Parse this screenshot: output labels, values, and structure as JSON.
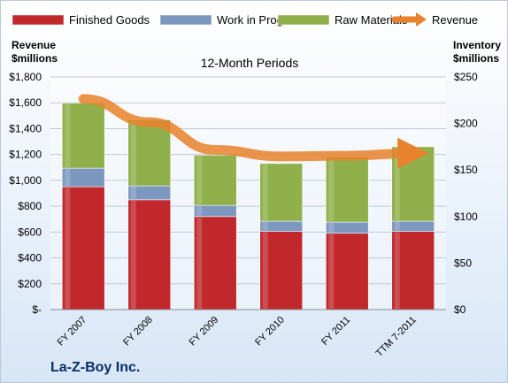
{
  "chart_data": {
    "type": "bar",
    "subtitle": "12-Month Periods",
    "company": "La-Z-Boy Inc.",
    "categories": [
      "FY 2007",
      "FY 2008",
      "FY 2009",
      "FY 2010",
      "FY 2011",
      "TTM 7-2011"
    ],
    "left_axis": {
      "label_line1": "Revenue",
      "label_line2": "$millions",
      "range": [
        0,
        1800
      ],
      "ticks": [
        0,
        200,
        400,
        600,
        800,
        1000,
        1200,
        1400,
        1600,
        1800
      ],
      "tick_labels": [
        "$-",
        "$200",
        "$400",
        "$600",
        "$800",
        "$1,000",
        "$1,200",
        "$1,400",
        "$1,600",
        "$1,800"
      ]
    },
    "right_axis": {
      "label_line1": "Inventory",
      "label_line2": "$millions",
      "range": [
        0,
        250
      ],
      "ticks": [
        0,
        50,
        100,
        150,
        200,
        250
      ],
      "tick_labels": [
        "$0",
        "$50",
        "$100",
        "$150",
        "$200",
        "$250"
      ]
    },
    "stack_series": [
      {
        "name": "Finished Goods",
        "color": "#c0282c",
        "values": [
          132,
          118,
          100,
          84,
          82,
          84
        ]
      },
      {
        "name": "Work in Progress",
        "color": "#7d98bf",
        "values": [
          20,
          15,
          12,
          11,
          12,
          11
        ]
      },
      {
        "name": "Raw Materials",
        "color": "#8fb04a",
        "values": [
          70,
          71,
          54,
          62,
          70,
          80
        ]
      }
    ],
    "line_series": {
      "name": "Revenue",
      "axis": "left",
      "color": "#e8822c",
      "values": [
        1630,
        1450,
        1235,
        1185,
        1190,
        1210
      ]
    },
    "grid": true,
    "legend_position": "top"
  }
}
